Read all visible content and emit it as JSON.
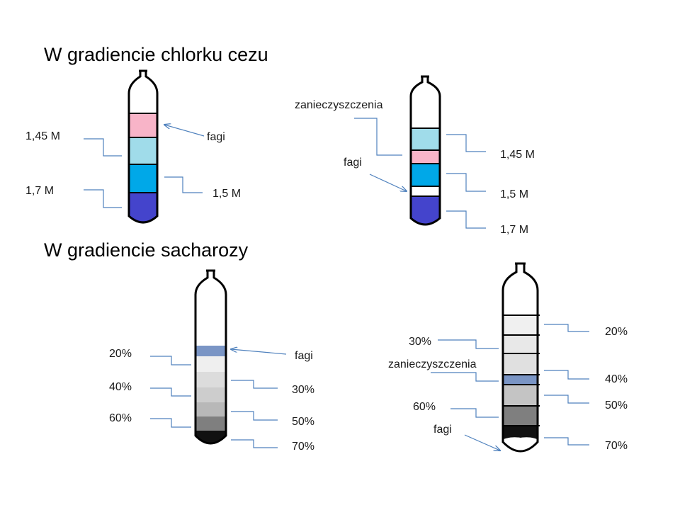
{
  "sections": {
    "cscl_title": "W gradiencie chlorku cezu",
    "sucrose_title": "W gradiencie sacharozy"
  },
  "tube1": {
    "labels": {
      "c145": "1,45 M",
      "c17": "1,7 M",
      "fagi": "fagi",
      "c15": "1,5 M"
    },
    "bands": [
      {
        "label": "fagi",
        "color": "#f8b4c8"
      },
      {
        "label": "1,45 M",
        "color": "#a0dcea"
      },
      {
        "label": "1,5 M",
        "color": "#00a8e8"
      },
      {
        "label": "1,7 M",
        "color": "#4444cc"
      }
    ]
  },
  "tube2": {
    "labels": {
      "zan": "zanieczyszczenia",
      "fagi": "fagi",
      "c145": "1,45 M",
      "c15": "1,5 M",
      "c17": "1,7 M"
    },
    "bands": [
      {
        "label": "1,45 M",
        "color": "#a0dcea"
      },
      {
        "label": "zanieczyszczenia",
        "color": "#f8b4c8"
      },
      {
        "label": "1,5 M",
        "color": "#00a8e8"
      },
      {
        "label": "fagi",
        "color": "#ffffff"
      },
      {
        "label": "1,7 M",
        "color": "#4444cc"
      }
    ]
  },
  "tube3": {
    "labels": {
      "p20": "20%",
      "p40": "40%",
      "p60": "60%",
      "fagi": "fagi",
      "p30": "30%",
      "p50": "50%",
      "p70": "70%"
    },
    "bands": [
      {
        "label": "fagi",
        "color": "#7a95c5"
      },
      {
        "label": "20%",
        "color": "#efefef"
      },
      {
        "label": "30%",
        "color": "#dcdcdc"
      },
      {
        "label": "40%",
        "color": "#cdcdcd"
      },
      {
        "label": "50%",
        "color": "#b8b8b8"
      },
      {
        "label": "60%",
        "color": "#7f7f7f"
      },
      {
        "label": "70%",
        "color": "#111111"
      }
    ]
  },
  "tube4": {
    "labels": {
      "p20": "20%",
      "p30": "30%",
      "zan": "zanieczyszczenia",
      "p40": "40%",
      "p50": "50%",
      "p60": "60%",
      "fagi": "fagi",
      "p70": "70%"
    },
    "bands": [
      {
        "label": "20%",
        "color": "#f0f0f0"
      },
      {
        "label": "30%",
        "color": "#e8e8e8"
      },
      {
        "label": "40%",
        "color": "#e0e0e0"
      },
      {
        "label": "zanieczyszczenia",
        "color": "#7a95c5"
      },
      {
        "label": "50%",
        "color": "#c4c4c4"
      },
      {
        "label": "60%",
        "color": "#7f7f7f"
      },
      {
        "label": "fagi",
        "color": "#ffffff"
      },
      {
        "label": "70%",
        "color": "#111111"
      }
    ]
  },
  "colors": {
    "leader": "#4f81bd",
    "outline": "#000000"
  }
}
